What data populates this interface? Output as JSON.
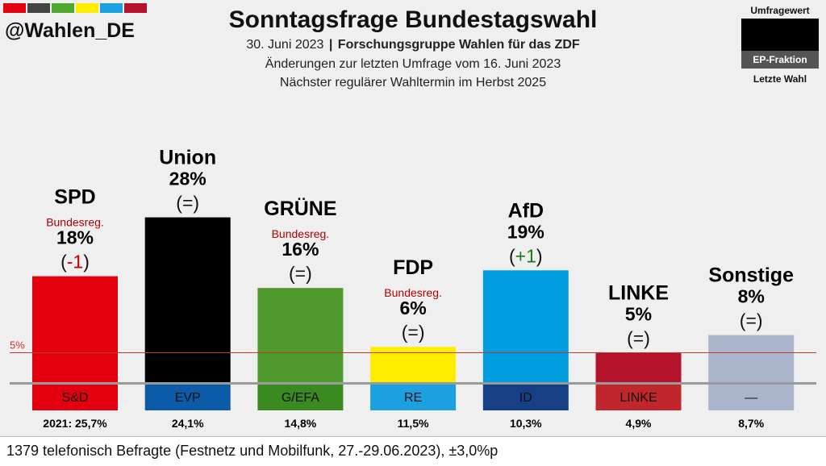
{
  "account": "@Wahlen_DE",
  "flag_colors": [
    "#e3000f",
    "#444444",
    "#50a82e",
    "#ffed00",
    "#1ba1e2",
    "#b5132b"
  ],
  "title": "Sonntagsfrage Bundestagswahl",
  "subtitle": {
    "date": "30. Juni 2023",
    "separator": "|",
    "institute": "Forschungsgruppe Wahlen für das ZDF",
    "changes": "Änderungen zur letzten Umfrage vom 16. Juni 2023",
    "next_election": "Nächster regulärer Wahltermin im Herbst 2025"
  },
  "legend": {
    "poll_value": "Umfragewert",
    "ep_fraction": "EP-Fraktion",
    "last_election": "Letzte Wahl"
  },
  "footer": "1379 telefonisch Befragte (Festnetz und Mobilfunk, 27.-29.06.2023), ±3,0%p",
  "chart_data": {
    "type": "bar",
    "threshold": {
      "value": 5,
      "label": "5%",
      "color": "#c0392b"
    },
    "ylim": [
      0,
      30
    ],
    "bars": [
      {
        "party": "SPD",
        "gov": "Bundesreg.",
        "value": 18,
        "pct": "18%",
        "chg_open": "(",
        "chg": "-1",
        "chg_close": ")",
        "chg_color": "#c00000",
        "color": "#e3000f",
        "ep": "S&D",
        "ep_color": "#e3000f",
        "ep_text": "#111111",
        "last": "2021: 25,7%"
      },
      {
        "party": "Union",
        "gov": "",
        "value": 28,
        "pct": "28%",
        "chg_open": "(",
        "chg": "=",
        "chg_close": ")",
        "chg_color": "#111111",
        "color": "#000000",
        "ep": "EVP",
        "ep_color": "#0b5ba8",
        "ep_text": "#111111",
        "last": "24,1%"
      },
      {
        "party": "GRÜNE",
        "gov": "Bundesreg.",
        "value": 16,
        "pct": "16%",
        "chg_open": "(",
        "chg": "=",
        "chg_close": ")",
        "chg_color": "#111111",
        "color": "#4f9a2e",
        "ep": "G/EFA",
        "ep_color": "#3a8a1f",
        "ep_text": "#111111",
        "last": "14,8%"
      },
      {
        "party": "FDP",
        "gov": "Bundesreg.",
        "value": 6,
        "pct": "6%",
        "chg_open": "(",
        "chg": "=",
        "chg_close": ")",
        "chg_color": "#111111",
        "color": "#ffed00",
        "ep": "RE",
        "ep_color": "#1ba1e2",
        "ep_text": "#111111",
        "last": "11,5%"
      },
      {
        "party": "AfD",
        "gov": "",
        "value": 19,
        "pct": "19%",
        "chg_open": "(",
        "chg": "+1",
        "chg_close": ")",
        "chg_color": "#1a7a1a",
        "color": "#009ee0",
        "ep": "ID",
        "ep_color": "#163f85",
        "ep_text": "#111111",
        "last": "10,3%"
      },
      {
        "party": "LINKE",
        "gov": "",
        "value": 5,
        "pct": "5%",
        "chg_open": "(",
        "chg": "=",
        "chg_close": ")",
        "chg_color": "#111111",
        "color": "#b5132b",
        "ep": "LINKE",
        "ep_color": "#c0262b",
        "ep_text": "#111111",
        "last": "4,9%"
      },
      {
        "party": "Sonstige",
        "gov": "",
        "value": 8,
        "pct": "8%",
        "chg_open": "(",
        "chg": "=",
        "chg_close": ")",
        "chg_color": "#111111",
        "color": "#aab5cc",
        "ep": "—",
        "ep_color": "#aab5cc",
        "ep_text": "#111111",
        "last": "8,7%"
      }
    ]
  }
}
